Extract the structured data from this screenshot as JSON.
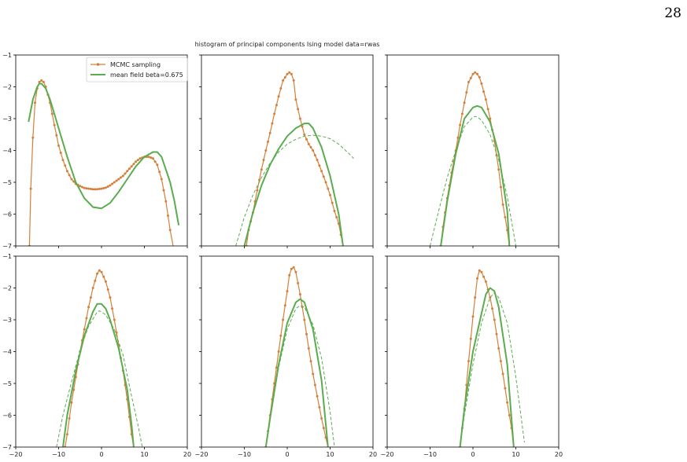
{
  "page_number": "28",
  "figure_title": "histogram of principal components Ising model data=rwas",
  "colors": {
    "mcmc": "#d4803a",
    "mean_field": "#5aac4f",
    "axis": "#000000"
  },
  "chart_data": {
    "type": "line",
    "title": "histogram of principal components Ising model data=rwas",
    "layout": "2x3 grid",
    "xlim": [
      -20,
      20
    ],
    "ylim": [
      -7,
      -1
    ],
    "xticks": [
      -20,
      -10,
      0,
      10,
      20
    ],
    "yticks": [
      -1,
      -2,
      -3,
      -4,
      -5,
      -6,
      -7
    ],
    "legend": {
      "placement": "top-center of first panel",
      "entries": [
        "MCMC sampling",
        "mean field beta=0.675"
      ]
    },
    "panels": [
      {
        "series": [
          {
            "name": "MCMC sampling",
            "style": "line-dots",
            "x": [
              -16.8,
              -16.5,
              -16,
              -15.5,
              -15,
              -14.5,
              -14,
              -13.5,
              -13,
              -12,
              -11,
              -10,
              -9,
              -8,
              -7,
              -6,
              -5,
              -4,
              -3,
              -2,
              -1,
              0,
              1,
              2,
              3,
              4,
              5,
              6,
              7,
              8,
              9,
              10,
              11,
              12,
              13,
              14,
              15,
              16,
              16.7
            ],
            "y": [
              -7,
              -5.2,
              -3.6,
              -2.5,
              -2.05,
              -1.85,
              -1.8,
              -1.85,
              -2.0,
              -2.5,
              -3.2,
              -3.85,
              -4.3,
              -4.65,
              -4.9,
              -5.05,
              -5.12,
              -5.18,
              -5.2,
              -5.22,
              -5.22,
              -5.2,
              -5.17,
              -5.1,
              -5.0,
              -4.9,
              -4.8,
              -4.65,
              -4.5,
              -4.35,
              -4.25,
              -4.2,
              -4.2,
              -4.25,
              -4.45,
              -4.9,
              -5.6,
              -6.5,
              -7
            ]
          },
          {
            "name": "mean field beta=0.675",
            "style": "solid",
            "x": [
              -17,
              -16,
              -15,
              -14.5,
              -14,
              -13,
              -12,
              -10,
              -8,
              -6,
              -4,
              -2,
              0,
              2,
              4,
              6,
              8,
              10,
              12,
              13,
              14,
              15,
              16,
              17,
              18
            ],
            "y": [
              -3.1,
              -2.4,
              -2.0,
              -1.9,
              -1.9,
              -2.05,
              -2.4,
              -3.3,
              -4.2,
              -5.0,
              -5.5,
              -5.78,
              -5.82,
              -5.65,
              -5.3,
              -4.9,
              -4.5,
              -4.2,
              -4.05,
              -4.05,
              -4.2,
              -4.6,
              -5.0,
              -5.6,
              -6.35
            ]
          }
        ]
      },
      {
        "series": [
          {
            "name": "MCMC sampling",
            "style": "line-dots",
            "x": [
              -9.5,
              -9,
              -8,
              -7,
              -6,
              -5,
              -4,
              -3,
              -2,
              -1,
              0,
              0.5,
              1,
              1.5,
              2,
              3,
              4,
              5,
              6,
              7,
              8,
              9,
              10,
              11,
              12,
              13
            ],
            "y": [
              -7,
              -6.5,
              -5.95,
              -5.25,
              -4.6,
              -4.0,
              -3.45,
              -2.85,
              -2.3,
              -1.8,
              -1.6,
              -1.55,
              -1.6,
              -1.8,
              -2.4,
              -3.0,
              -3.5,
              -3.8,
              -4.0,
              -4.3,
              -4.65,
              -5.0,
              -5.4,
              -5.9,
              -6.3,
              -7
            ]
          },
          {
            "name": "",
            "style": "solid",
            "x": [
              -10,
              -8,
              -6,
              -4,
              -2,
              0,
              2,
              4,
              5,
              6,
              8,
              10,
              12,
              13
            ],
            "y": [
              -7,
              -5.95,
              -5.1,
              -4.45,
              -3.95,
              -3.55,
              -3.3,
              -3.15,
              -3.15,
              -3.3,
              -3.9,
              -4.8,
              -6.0,
              -7
            ]
          },
          {
            "name": "",
            "style": "dashed",
            "x": [
              -12,
              -10,
              -8,
              -6,
              -4,
              -2,
              0,
              2,
              4,
              6,
              8,
              10,
              12,
              14,
              15.5
            ],
            "y": [
              -7,
              -6.1,
              -5.4,
              -4.85,
              -4.4,
              -4.05,
              -3.8,
              -3.65,
              -3.55,
              -3.52,
              -3.55,
              -3.63,
              -3.8,
              -4.05,
              -4.25
            ]
          }
        ]
      },
      {
        "series": [
          {
            "name": "MCMC sampling",
            "style": "line-dots",
            "x": [
              -7.5,
              -7,
              -6,
              -5,
              -4,
              -3,
              -2,
              -1,
              0,
              0.5,
              1,
              1.5,
              2,
              3,
              4,
              5,
              6,
              7,
              8,
              8.5
            ],
            "y": [
              -7,
              -6.4,
              -5.5,
              -4.7,
              -4.0,
              -3.2,
              -2.5,
              -1.85,
              -1.6,
              -1.55,
              -1.6,
              -1.7,
              -1.9,
              -2.4,
              -3.0,
              -3.7,
              -4.6,
              -5.7,
              -6.5,
              -7
            ]
          },
          {
            "name": "",
            "style": "solid",
            "x": [
              -7.5,
              -6,
              -4,
              -2,
              0,
              1,
              2,
              4,
              6,
              8,
              8.5
            ],
            "y": [
              -7,
              -5.6,
              -4.1,
              -3.0,
              -2.65,
              -2.6,
              -2.65,
              -3.1,
              -4.1,
              -5.9,
              -7
            ]
          },
          {
            "name": "",
            "style": "dashed",
            "x": [
              -10,
              -8,
              -6,
              -4,
              -2,
              0,
              0.5,
              1,
              2,
              4,
              6,
              8,
              10
            ],
            "y": [
              -7,
              -5.9,
              -4.85,
              -4.0,
              -3.25,
              -2.95,
              -2.93,
              -2.95,
              -3.05,
              -3.5,
              -4.3,
              -5.45,
              -7
            ]
          }
        ]
      },
      {
        "series": [
          {
            "name": "MCMC sampling",
            "style": "line-dots",
            "x": [
              -8.5,
              -8,
              -7,
              -6,
              -5,
              -4,
              -3,
              -2,
              -1,
              -0.5,
              0,
              1,
              2,
              3,
              4,
              5,
              6,
              7,
              7.5
            ],
            "y": [
              -7,
              -6.6,
              -5.6,
              -4.8,
              -4.0,
              -3.3,
              -2.6,
              -2.0,
              -1.55,
              -1.45,
              -1.5,
              -1.8,
              -2.3,
              -3.0,
              -3.8,
              -4.6,
              -5.5,
              -6.6,
              -7
            ]
          },
          {
            "name": "",
            "style": "solid",
            "x": [
              -9,
              -8,
              -6,
              -4,
              -2,
              -1,
              0,
              1,
              2,
              4,
              6,
              7,
              7.5
            ],
            "y": [
              -7,
              -6.0,
              -4.6,
              -3.5,
              -2.75,
              -2.5,
              -2.5,
              -2.65,
              -3.0,
              -3.9,
              -5.2,
              -6.3,
              -7
            ]
          },
          {
            "name": "",
            "style": "dashed",
            "x": [
              -10.5,
              -9,
              -7,
              -5,
              -3,
              -1,
              -0.5,
              0,
              1,
              3,
              5,
              7,
              8.5,
              9.5
            ],
            "y": [
              -7,
              -6.0,
              -4.95,
              -3.95,
              -3.2,
              -2.75,
              -2.72,
              -2.75,
              -2.85,
              -3.3,
              -4.1,
              -5.4,
              -6.3,
              -7
            ]
          }
        ]
      },
      {
        "series": [
          {
            "name": "MCMC sampling",
            "style": "line-dots",
            "x": [
              -5,
              -4,
              -3,
              -2,
              -1,
              0,
              0.5,
              1,
              1.5,
              2,
              3,
              4,
              5,
              6,
              7,
              8,
              9,
              9.5
            ],
            "y": [
              -7,
              -6.0,
              -5.0,
              -4.0,
              -3.0,
              -2.1,
              -1.6,
              -1.4,
              -1.35,
              -1.5,
              -2.2,
              -3.0,
              -3.9,
              -4.7,
              -5.4,
              -6.1,
              -6.7,
              -7
            ]
          },
          {
            "name": "",
            "style": "solid",
            "x": [
              -5,
              -4,
              -2,
              0,
              2,
              3,
              4,
              6,
              8,
              9.5
            ],
            "y": [
              -7,
              -6.1,
              -4.4,
              -3.1,
              -2.45,
              -2.35,
              -2.45,
              -3.3,
              -4.9,
              -7
            ]
          },
          {
            "name": "",
            "style": "dashed",
            "x": [
              -5,
              -4,
              -2,
              0,
              2,
              3,
              4,
              6,
              8,
              10,
              11
            ],
            "y": [
              -7,
              -6.1,
              -4.5,
              -3.3,
              -2.65,
              -2.55,
              -2.6,
              -3.15,
              -4.2,
              -5.9,
              -7
            ]
          }
        ]
      },
      {
        "series": [
          {
            "name": "MCMC sampling",
            "style": "line-dots",
            "x": [
              -3,
              -2,
              -1,
              0,
              1,
              1.5,
              2,
              3,
              4,
              5,
              6,
              7,
              8,
              9,
              9.5
            ],
            "y": [
              -7,
              -5.8,
              -4.3,
              -2.9,
              -1.7,
              -1.45,
              -1.5,
              -1.8,
              -2.3,
              -3.0,
              -3.9,
              -4.7,
              -5.6,
              -6.4,
              -7
            ]
          },
          {
            "name": "",
            "style": "solid",
            "x": [
              -3,
              -2,
              0,
              2,
              3,
              4,
              5,
              6,
              8,
              9.5
            ],
            "y": [
              -7,
              -5.8,
              -4.0,
              -2.8,
              -2.2,
              -2.0,
              -2.1,
              -2.6,
              -4.4,
              -7
            ]
          },
          {
            "name": "",
            "style": "dashed",
            "x": [
              -3,
              -2,
              0,
              2,
              4,
              5,
              6,
              8,
              10,
              12
            ],
            "y": [
              -7,
              -6.0,
              -4.4,
              -3.1,
              -2.3,
              -2.15,
              -2.3,
              -3.1,
              -4.8,
              -6.85
            ]
          }
        ]
      }
    ]
  }
}
